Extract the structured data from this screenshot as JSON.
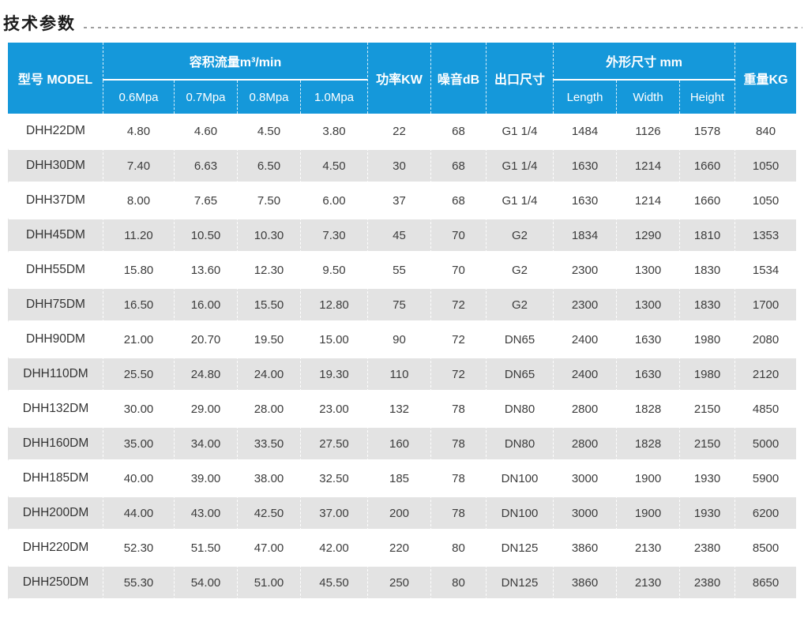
{
  "page": {
    "title": "技术参数"
  },
  "colors": {
    "header_blue": "#1598da",
    "alt_row_gray": "#e3e3e3",
    "data_text": "#3c3c3c",
    "dotted_rule": "#9e9e9e"
  },
  "table": {
    "header": {
      "model": "型号 MODEL",
      "flow_group": "容积流量m³/min",
      "flow_subcols": [
        "0.6Mpa",
        "0.7Mpa",
        "0.8Mpa",
        "1.0Mpa"
      ],
      "power": "功率KW",
      "noise": "噪音dB",
      "outlet": "出口尺寸",
      "dimensions_group": "外形尺寸 mm",
      "dimensions_subcols": [
        "Length",
        "Width",
        "Height"
      ],
      "weight": "重量KG"
    },
    "rows": [
      {
        "model": "DHH22DM",
        "flow": [
          "4.80",
          "4.60",
          "4.50",
          "3.80"
        ],
        "power": "22",
        "noise": "68",
        "outlet": "G1 1/4",
        "dims": [
          "1484",
          "1126",
          "1578"
        ],
        "weight": "840"
      },
      {
        "model": "DHH30DM",
        "flow": [
          "7.40",
          "6.63",
          "6.50",
          "4.50"
        ],
        "power": "30",
        "noise": "68",
        "outlet": "G1 1/4",
        "dims": [
          "1630",
          "1214",
          "1660"
        ],
        "weight": "1050"
      },
      {
        "model": "DHH37DM",
        "flow": [
          "8.00",
          "7.65",
          "7.50",
          "6.00"
        ],
        "power": "37",
        "noise": "68",
        "outlet": "G1 1/4",
        "dims": [
          "1630",
          "1214",
          "1660"
        ],
        "weight": "1050"
      },
      {
        "model": "DHH45DM",
        "flow": [
          "11.20",
          "10.50",
          "10.30",
          "7.30"
        ],
        "power": "45",
        "noise": "70",
        "outlet": "G2",
        "dims": [
          "1834",
          "1290",
          "1810"
        ],
        "weight": "1353"
      },
      {
        "model": "DHH55DM",
        "flow": [
          "15.80",
          "13.60",
          "12.30",
          "9.50"
        ],
        "power": "55",
        "noise": "70",
        "outlet": "G2",
        "dims": [
          "2300",
          "1300",
          "1830"
        ],
        "weight": "1534"
      },
      {
        "model": "DHH75DM",
        "flow": [
          "16.50",
          "16.00",
          "15.50",
          "12.80"
        ],
        "power": "75",
        "noise": "72",
        "outlet": "G2",
        "dims": [
          "2300",
          "1300",
          "1830"
        ],
        "weight": "1700"
      },
      {
        "model": "DHH90DM",
        "flow": [
          "21.00",
          "20.70",
          "19.50",
          "15.00"
        ],
        "power": "90",
        "noise": "72",
        "outlet": "DN65",
        "dims": [
          "2400",
          "1630",
          "1980"
        ],
        "weight": "2080"
      },
      {
        "model": "DHH110DM",
        "flow": [
          "25.50",
          "24.80",
          "24.00",
          "19.30"
        ],
        "power": "110",
        "noise": "72",
        "outlet": "DN65",
        "dims": [
          "2400",
          "1630",
          "1980"
        ],
        "weight": "2120"
      },
      {
        "model": "DHH132DM",
        "flow": [
          "30.00",
          "29.00",
          "28.00",
          "23.00"
        ],
        "power": "132",
        "noise": "78",
        "outlet": "DN80",
        "dims": [
          "2800",
          "1828",
          "2150"
        ],
        "weight": "4850"
      },
      {
        "model": "DHH160DM",
        "flow": [
          "35.00",
          "34.00",
          "33.50",
          "27.50"
        ],
        "power": "160",
        "noise": "78",
        "outlet": "DN80",
        "dims": [
          "2800",
          "1828",
          "2150"
        ],
        "weight": "5000"
      },
      {
        "model": "DHH185DM",
        "flow": [
          "40.00",
          "39.00",
          "38.00",
          "32.50"
        ],
        "power": "185",
        "noise": "78",
        "outlet": "DN100",
        "dims": [
          "3000",
          "1900",
          "1930"
        ],
        "weight": "5900"
      },
      {
        "model": "DHH200DM",
        "flow": [
          "44.00",
          "43.00",
          "42.50",
          "37.00"
        ],
        "power": "200",
        "noise": "78",
        "outlet": "DN100",
        "dims": [
          "3000",
          "1900",
          "1930"
        ],
        "weight": "6200"
      },
      {
        "model": "DHH220DM",
        "flow": [
          "52.30",
          "51.50",
          "47.00",
          "42.00"
        ],
        "power": "220",
        "noise": "80",
        "outlet": "DN125",
        "dims": [
          "3860",
          "2130",
          "2380"
        ],
        "weight": "8500"
      },
      {
        "model": "DHH250DM",
        "flow": [
          "55.30",
          "54.00",
          "51.00",
          "45.50"
        ],
        "power": "250",
        "noise": "80",
        "outlet": "DN125",
        "dims": [
          "3860",
          "2130",
          "2380"
        ],
        "weight": "8650"
      }
    ]
  }
}
